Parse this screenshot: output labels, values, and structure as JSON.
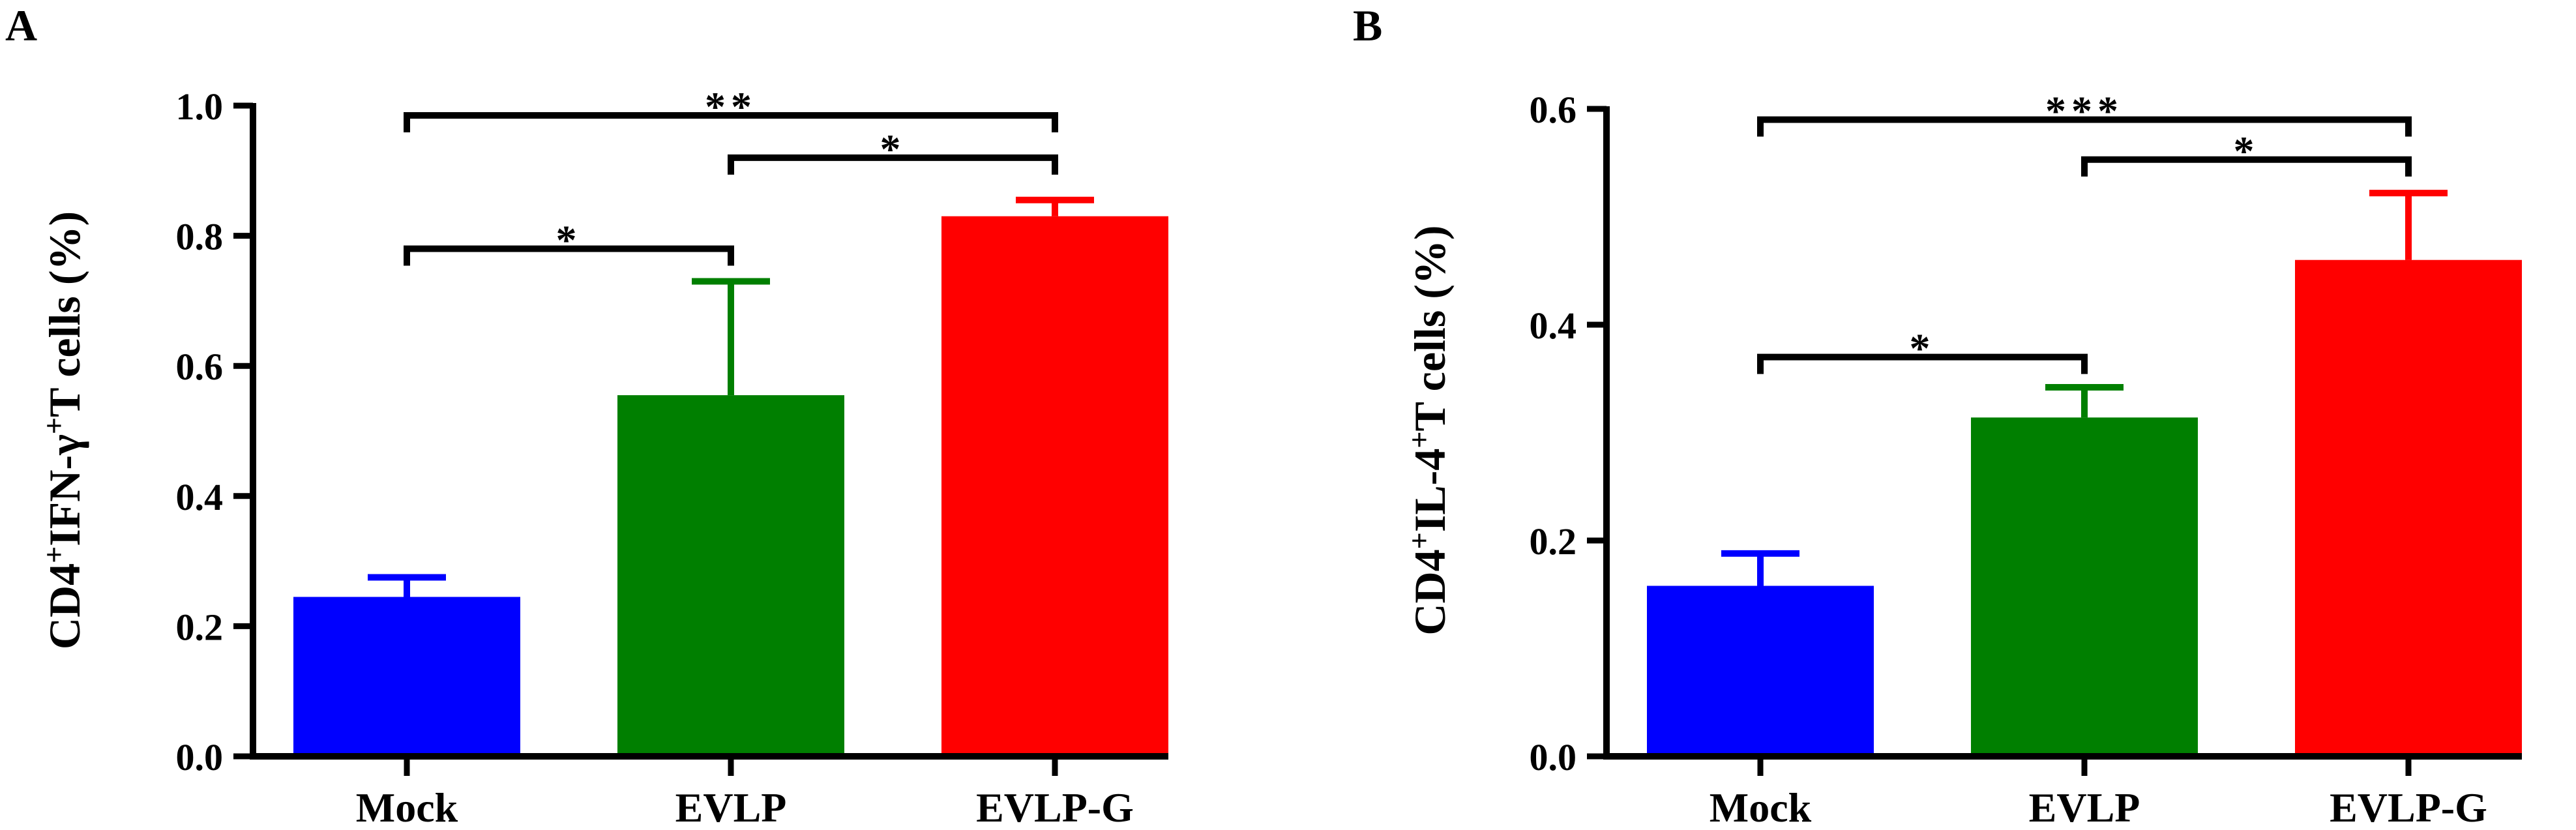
{
  "chart_data": [
    {
      "panel": "A",
      "type": "bar",
      "ylabel": {
        "prefix": "CD4",
        "sup1": "+",
        "middle": "IFN-γ",
        "sup2": "+",
        "suffix": "T cells (%)"
      },
      "categories": [
        "Mock",
        "EVLP",
        "EVLP-G"
      ],
      "values": [
        0.245,
        0.555,
        0.83
      ],
      "errors": [
        0.03,
        0.175,
        0.025
      ],
      "colors": [
        "#0000ff",
        "#007f00",
        "#ff0000"
      ],
      "ylim": [
        0,
        1.0
      ],
      "yticks": [
        0.0,
        0.2,
        0.4,
        0.6,
        0.8,
        1.0
      ],
      "ytick_labels": [
        "0.0",
        "0.2",
        "0.4",
        "0.6",
        "0.8",
        "1.0"
      ],
      "significance": [
        {
          "from": 0,
          "to": 1,
          "label": "*",
          "y": 0.78
        },
        {
          "from": 1,
          "to": 2,
          "label": "*",
          "y": 0.92
        },
        {
          "from": 0,
          "to": 2,
          "label": "**",
          "y": 0.985
        }
      ]
    },
    {
      "panel": "B",
      "type": "bar",
      "ylabel": {
        "prefix": "CD4",
        "sup1": "+",
        "middle": "IL-4",
        "sup2": "+",
        "suffix": "T cells (%)"
      },
      "categories": [
        "Mock",
        "EVLP",
        "EVLP-G"
      ],
      "values": [
        0.158,
        0.314,
        0.46
      ],
      "errors": [
        0.03,
        0.028,
        0.062
      ],
      "colors": [
        "#0000ff",
        "#007f00",
        "#ff0000"
      ],
      "ylim": [
        0,
        0.6
      ],
      "yticks": [
        0.0,
        0.2,
        0.4,
        0.6
      ],
      "ytick_labels": [
        "0.0",
        "0.2",
        "0.4",
        "0.6"
      ],
      "significance": [
        {
          "from": 0,
          "to": 1,
          "label": "*",
          "y": 0.37
        },
        {
          "from": 1,
          "to": 2,
          "label": "*",
          "y": 0.553
        },
        {
          "from": 0,
          "to": 2,
          "label": "***",
          "y": 0.59
        }
      ]
    }
  ]
}
